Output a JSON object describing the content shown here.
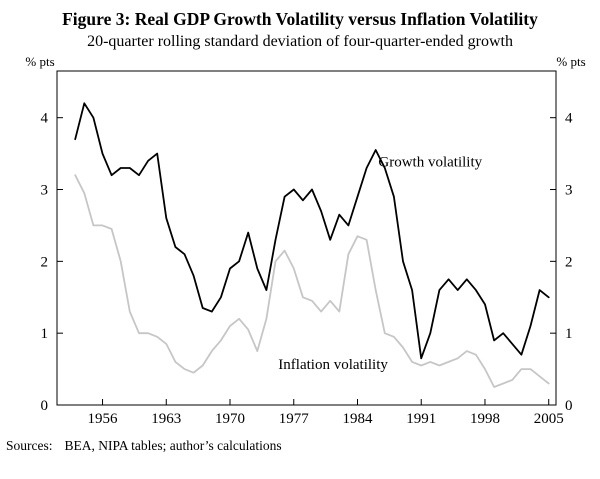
{
  "figure": {
    "title": "Figure 3: Real GDP Growth Volatility versus Inflation Volatility",
    "subtitle": "20-quarter rolling standard deviation of four-quarter-ended growth",
    "sources_label": "Sources:",
    "sources_text": "BEA, NIPA tables; author’s calculations"
  },
  "chart_data": {
    "type": "line",
    "title": "Figure 3: Real GDP Growth Volatility versus Inflation Volatility",
    "subtitle": "20-quarter rolling standard deviation of four-quarter-ended growth",
    "units": "% pts",
    "xlabel": "",
    "ylabel": "% pts",
    "grid": false,
    "frame": true,
    "xlim": [
      1951,
      2005.8
    ],
    "ylim": [
      0,
      4.65
    ],
    "xticks": [
      1956,
      1963,
      1970,
      1977,
      1984,
      1991,
      1998,
      2005
    ],
    "yticks": [
      0,
      1,
      2,
      3,
      4
    ],
    "x": [
      1953,
      1954,
      1955,
      1956,
      1957,
      1958,
      1959,
      1960,
      1961,
      1962,
      1963,
      1964,
      1965,
      1966,
      1967,
      1968,
      1969,
      1970,
      1971,
      1972,
      1973,
      1974,
      1975,
      1976,
      1977,
      1978,
      1979,
      1980,
      1981,
      1982,
      1983,
      1984,
      1985,
      1986,
      1987,
      1988,
      1989,
      1990,
      1991,
      1992,
      1993,
      1994,
      1995,
      1996,
      1997,
      1998,
      1999,
      2000,
      2001,
      2002,
      2003,
      2004,
      2005
    ],
    "series": [
      {
        "name": "Growth volatility",
        "color": "#000000",
        "width": 1.8,
        "values": [
          3.7,
          4.2,
          4.0,
          3.5,
          3.2,
          3.3,
          3.3,
          3.2,
          3.4,
          3.5,
          2.6,
          2.2,
          2.1,
          1.8,
          1.35,
          1.3,
          1.5,
          1.9,
          2.0,
          2.4,
          1.9,
          1.6,
          2.3,
          2.9,
          3.0,
          2.85,
          3.0,
          2.7,
          2.3,
          2.65,
          2.5,
          2.9,
          3.3,
          3.55,
          3.3,
          2.9,
          2.0,
          1.6,
          0.65,
          1.0,
          1.6,
          1.75,
          1.6,
          1.75,
          1.6,
          1.4,
          0.9,
          1.0,
          0.85,
          0.7,
          1.1,
          1.6,
          1.5
        ]
      },
      {
        "name": "Inflation volatility",
        "color": "#c6c6c6",
        "width": 1.8,
        "values": [
          3.2,
          2.95,
          2.5,
          2.5,
          2.45,
          2.0,
          1.3,
          1.0,
          1.0,
          0.95,
          0.85,
          0.6,
          0.5,
          0.45,
          0.55,
          0.75,
          0.9,
          1.1,
          1.2,
          1.05,
          0.75,
          1.2,
          2.0,
          2.15,
          1.9,
          1.5,
          1.45,
          1.3,
          1.45,
          1.3,
          2.1,
          2.35,
          2.3,
          1.6,
          1.0,
          0.95,
          0.8,
          0.6,
          0.55,
          0.6,
          0.55,
          0.6,
          0.65,
          0.75,
          0.7,
          0.5,
          0.25,
          0.3,
          0.35,
          0.5,
          0.5,
          0.4,
          0.3
        ]
      }
    ],
    "annotations": [
      {
        "text": "Growth volatility",
        "x": 1986.3,
        "y": 3.32,
        "anchor": "start"
      },
      {
        "text": "Inflation volatility",
        "x": 1975.3,
        "y": 0.5,
        "anchor": "start"
      }
    ],
    "legend_position": "inline-annotations"
  }
}
